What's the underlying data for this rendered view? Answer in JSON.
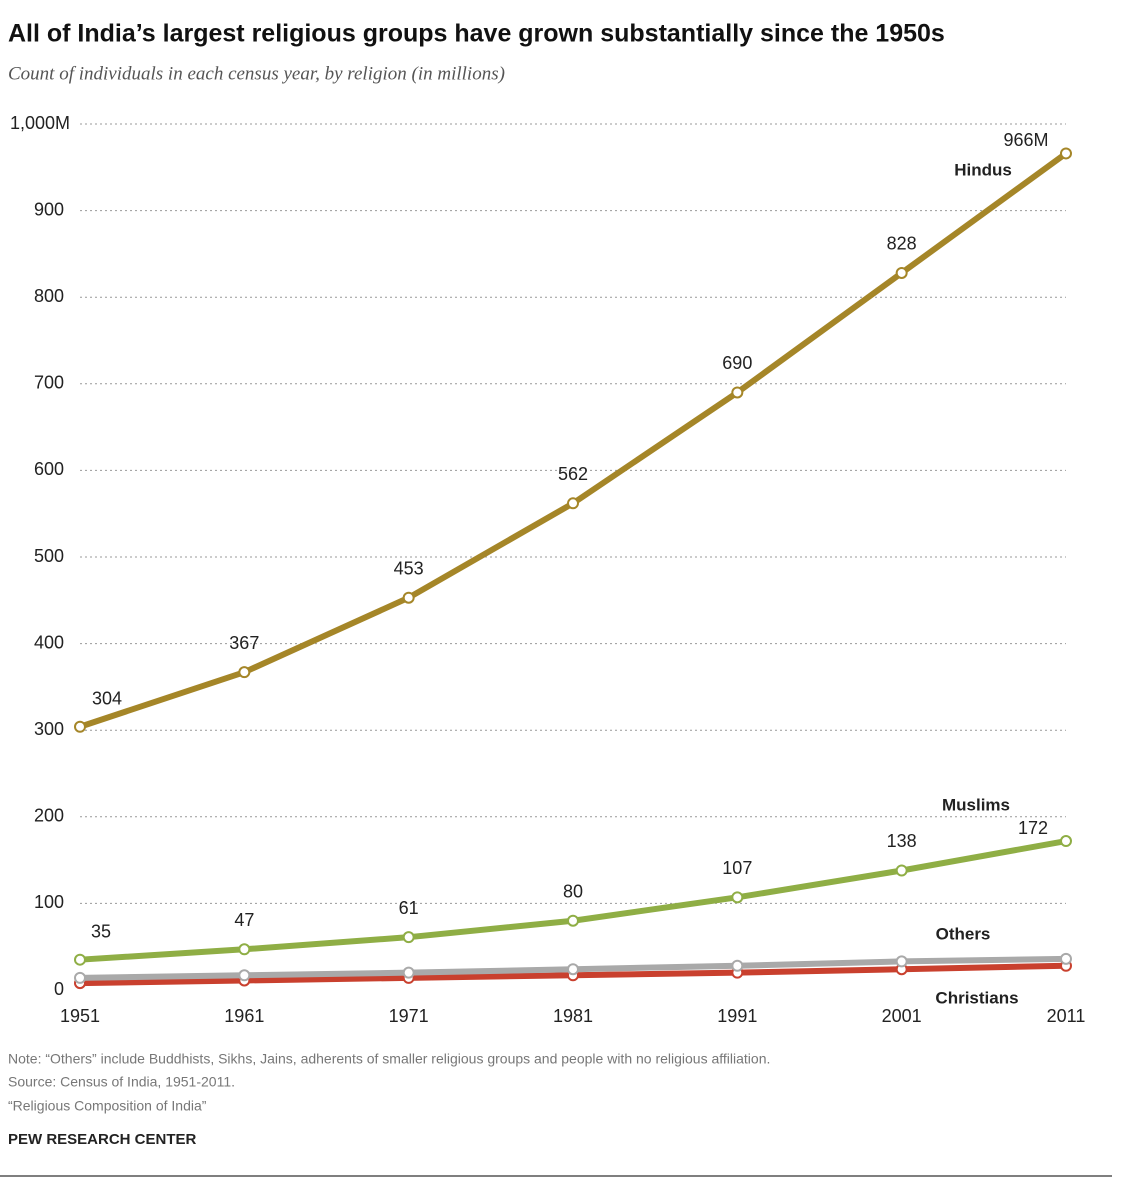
{
  "chart_data": {
    "type": "line",
    "title": "All of India’s largest religious groups have grown substantially since the 1950s",
    "subtitle": "Count of individuals in each census year, by religion (in millions)",
    "x": [
      1951,
      1961,
      1971,
      1981,
      1991,
      2001,
      2011
    ],
    "xlim": [
      1951,
      2011
    ],
    "ylim": [
      0,
      1000
    ],
    "yticks": [
      0,
      100,
      200,
      300,
      400,
      500,
      600,
      700,
      800,
      900,
      {
        "value": 1000,
        "label": "1,000M"
      }
    ],
    "grid": true,
    "series": [
      {
        "name": "Hindus",
        "color": "#a58628",
        "values": [
          304,
          367,
          453,
          562,
          690,
          828,
          966
        ],
        "value_labels": [
          "304",
          "367",
          "453",
          "562",
          "690",
          "828",
          "966M"
        ]
      },
      {
        "name": "Muslims",
        "color": "#8fae45",
        "values": [
          35,
          47,
          61,
          80,
          107,
          138,
          172
        ]
      },
      {
        "name": "Others",
        "color": "#a9a9a9",
        "values": [
          14,
          17,
          20,
          24,
          28,
          33,
          36
        ]
      },
      {
        "name": "Christians",
        "color": "#c9402e",
        "values": [
          8,
          11,
          14,
          17,
          20,
          24,
          28
        ]
      }
    ],
    "note": "Note: “Others” include Buddhists, Sikhs, Jains, adherents of smaller religious groups and people with no religious affiliation.",
    "source": "Source: Census of India, 1951-2011.",
    "report": "“Religious Composition of India”",
    "brand": "PEW RESEARCH CENTER"
  }
}
